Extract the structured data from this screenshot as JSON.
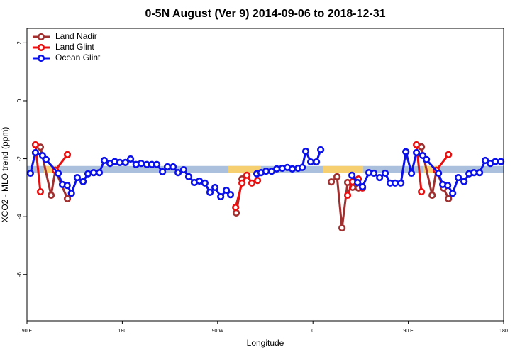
{
  "chart_data": {
    "type": "line",
    "title": "0-5N August (Ver 9)   2014-09-06 to 2018-12-31",
    "x_label": "Longitude",
    "y_label": "XCO2 - MLO trend (ppm)",
    "xlim": [
      90,
      540
    ],
    "xticks": [
      {
        "value": 90,
        "label": "90 E"
      },
      180,
      {
        "value": 270,
        "label": "90 W"
      },
      {
        "value": 360,
        "label": "0"
      },
      {
        "value": 450,
        "label": "90 E"
      },
      {
        "value": 540,
        "label": "180"
      }
    ],
    "ylim": [
      -7.6,
      2.5
    ],
    "yticks": [
      2,
      0,
      -2,
      -4,
      -6
    ],
    "legend": "top-left",
    "band": {
      "ylim": [
        -2.48,
        -2.25
      ],
      "color": "#abc0dc",
      "highlight_color": "#f5cf70",
      "highlights": [
        [
          106,
          116.8
        ],
        [
          280.2,
          311
        ],
        [
          369.3,
          407.5
        ],
        [
          464.4,
          479.8
        ]
      ]
    },
    "series": [
      {
        "name": "Land Nadir",
        "color": "#a03030",
        "x": [
          102.7,
          112.8,
          116.8,
          128.2,
          null,
          287.6,
          293,
          null,
          377.3,
          382.7,
          387.4,
          392.7,
          397.4,
          402.8,
          null,
          462.4,
          472.5,
          476.5,
          483.2,
          487.9
        ],
        "values": [
          -1.6,
          -3.26,
          -2.4,
          -3.38,
          null,
          -3.87,
          -2.7,
          null,
          -2.8,
          -2.62,
          -4.39,
          -2.82,
          -2.99,
          -3.01,
          null,
          -1.59,
          -3.26,
          -2.4,
          -3.01,
          -3.38
        ]
      },
      {
        "name": "Land Glint",
        "color": "#e81010",
        "x": [
          98,
          102.7,
          null,
          116.8,
          128.2,
          null,
          287,
          293,
          297.6,
          302.3,
          307.7,
          null,
          392.7,
          397.4,
          402.8,
          406.8,
          null,
          457.7,
          462.4,
          null,
          476.5,
          487.9
        ],
        "values": [
          -1.52,
          -3.14,
          null,
          -2.4,
          -1.86,
          null,
          -3.68,
          -2.84,
          -2.57,
          -2.84,
          -2.75,
          null,
          -3.26,
          -2.8,
          -2.7,
          -3.01,
          null,
          -1.52,
          -3.14,
          null,
          -2.4,
          -1.86
        ]
      },
      {
        "name": "Ocean Glint",
        "color": "#0a10e8",
        "x": [
          93.3,
          98,
          104.7,
          108,
          119.5,
          123.5,
          128,
          132,
          137.5,
          143,
          147.6,
          153,
          158.3,
          163,
          168.4,
          173,
          177.7,
          183,
          187.8,
          193,
          197.8,
          203.2,
          207.9,
          212.6,
          218,
          222.6,
          228,
          232.7,
          238,
          242.7,
          248,
          252.8,
          258,
          262.8,
          267.5,
          272.9,
          278.2,
          282.2,
          null,
          307,
          311,
          315.7,
          321,
          325.8,
          331,
          335.8,
          340.5,
          345.9,
          349.9,
          353.2,
          357.9,
          363.3,
          367.3,
          null,
          396.8,
          402.1,
          406.8,
          412.8,
          417.5,
          422.9,
          428.2,
          432.9,
          437.6,
          443,
          447.7,
          453,
          457.7,
          463.7,
          467.1,
          478.5,
          482.5,
          487.2,
          491.9,
          497.2,
          502.6,
          507.3,
          512,
          517.3,
          522.7,
          527.4,
          532.1,
          537.4
        ],
        "values": [
          -2.5,
          -1.79,
          -1.89,
          -2.03,
          -2.5,
          -2.89,
          -2.92,
          -3.19,
          -2.65,
          -2.79,
          -2.52,
          -2.48,
          -2.48,
          -2.06,
          -2.16,
          -2.1,
          -2.13,
          -2.13,
          -2.01,
          -2.2,
          -2.16,
          -2.2,
          -2.2,
          -2.2,
          -2.45,
          -2.28,
          -2.28,
          -2.48,
          -2.38,
          -2.62,
          -2.82,
          -2.77,
          -2.84,
          -3.16,
          -2.99,
          -3.31,
          -3.09,
          -3.24,
          null,
          -2.52,
          -2.48,
          -2.43,
          -2.43,
          -2.35,
          -2.33,
          -2.3,
          -2.35,
          -2.33,
          -2.3,
          -1.74,
          -2.11,
          -2.11,
          -1.69,
          null,
          -2.57,
          -2.82,
          -2.97,
          -2.48,
          -2.5,
          -2.65,
          -2.5,
          -2.84,
          -2.84,
          -2.84,
          -1.76,
          -2.5,
          -1.79,
          -1.89,
          -2.03,
          -2.5,
          -2.89,
          -2.92,
          -3.19,
          -2.65,
          -2.79,
          -2.52,
          -2.48,
          -2.48,
          -2.06,
          -2.16,
          -2.1,
          -2.1
        ]
      }
    ]
  }
}
